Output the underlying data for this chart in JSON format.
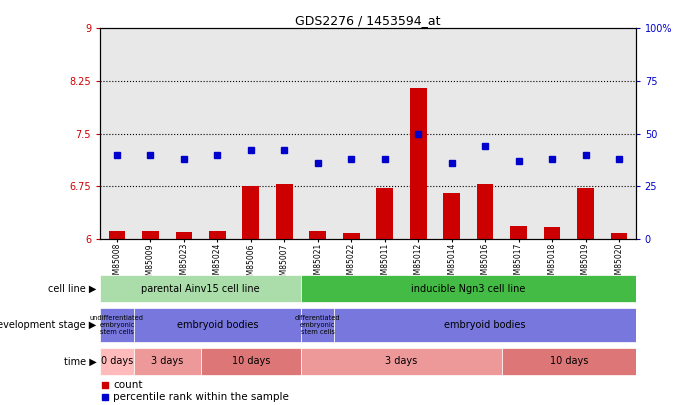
{
  "title": "GDS2276 / 1453594_at",
  "samples": [
    "GSM85008",
    "GSM85009",
    "GSM85023",
    "GSM85024",
    "GSM85006",
    "GSM85007",
    "GSM85021",
    "GSM85022",
    "GSM85011",
    "GSM85012",
    "GSM85014",
    "GSM85016",
    "GSM85017",
    "GSM85018",
    "GSM85019",
    "GSM85020"
  ],
  "count_values": [
    6.12,
    6.12,
    6.1,
    6.12,
    6.75,
    6.78,
    6.12,
    6.08,
    6.72,
    8.15,
    6.65,
    6.78,
    6.18,
    6.17,
    6.72,
    6.08
  ],
  "percentile_values": [
    40,
    40,
    38,
    40,
    42,
    42,
    36,
    38,
    38,
    50,
    36,
    44,
    37,
    38,
    40,
    38
  ],
  "ylim_left": [
    6,
    9
  ],
  "ylim_right": [
    0,
    100
  ],
  "yticks_left": [
    6,
    6.75,
    7.5,
    8.25,
    9
  ],
  "yticks_right": [
    0,
    25,
    50,
    75,
    100
  ],
  "ytick_labels_left": [
    "6",
    "6.75",
    "7.5",
    "8.25",
    "9"
  ],
  "ytick_labels_right": [
    "0",
    "25",
    "50",
    "75",
    "100%"
  ],
  "hlines": [
    6.75,
    7.5,
    8.25
  ],
  "bar_color": "#cc0000",
  "dot_color": "#0000cc",
  "axis_left_color": "#cc0000",
  "axis_right_color": "#0000cc",
  "plot_bg": "#e8e8e8",
  "cell_line_light_green": "#aaddaa",
  "cell_line_dark_green": "#44bb44",
  "dev_stage_color": "#7777dd",
  "time_light": "#ffbbbb",
  "time_medium": "#ee9999",
  "time_dark": "#dd7777"
}
